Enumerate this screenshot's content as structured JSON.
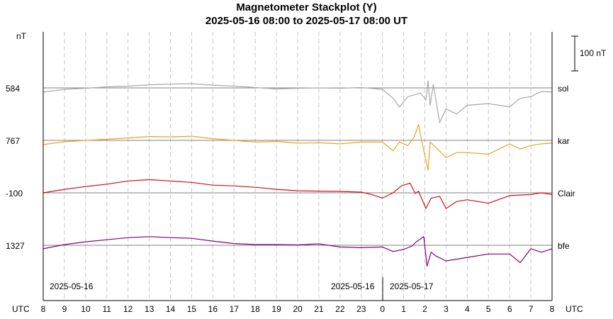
{
  "chart_data": {
    "type": "line",
    "title": "Magnetometer Stackplot (Y)",
    "subtitle": "2025-05-16 08:00 to 2025-05-17 08:00 UT",
    "y_unit": "nT",
    "scale_bar_label": "100 nT",
    "x_axis_label_left": "UTC",
    "x_axis_label_right": "UTC",
    "x_hours": [
      8,
      9,
      10,
      11,
      12,
      13,
      14,
      15,
      16,
      17,
      18,
      19,
      20,
      21,
      22,
      23,
      0,
      1,
      2,
      3,
      4,
      5,
      6,
      7,
      8
    ],
    "x_range_hours": [
      0,
      24
    ],
    "date_labels": [
      "2025-05-16",
      "2025-05-16",
      "2025-05-17"
    ],
    "grid": "dashed vertical hour lines",
    "series": [
      {
        "name": "sol",
        "baseline": "584",
        "color": "#a8a8a8",
        "points": [
          [
            0,
            -12
          ],
          [
            1,
            -4
          ],
          [
            2,
            -1
          ],
          [
            3,
            3
          ],
          [
            4,
            5
          ],
          [
            5,
            9
          ],
          [
            6,
            11
          ],
          [
            7,
            12
          ],
          [
            8,
            8
          ],
          [
            9,
            5
          ],
          [
            10,
            1
          ],
          [
            11,
            -3
          ],
          [
            12,
            -1
          ],
          [
            13,
            0
          ],
          [
            14,
            -1
          ],
          [
            15,
            1
          ],
          [
            16,
            -4
          ],
          [
            16.5,
            -30
          ],
          [
            16.8,
            -55
          ],
          [
            17.2,
            -25
          ],
          [
            17.8,
            -15
          ],
          [
            18.05,
            -35
          ],
          [
            18.15,
            20
          ],
          [
            18.25,
            -50
          ],
          [
            18.4,
            10
          ],
          [
            18.7,
            -100
          ],
          [
            19,
            -60
          ],
          [
            19.5,
            -75
          ],
          [
            20,
            -50
          ],
          [
            21,
            -45
          ],
          [
            22,
            -55
          ],
          [
            22.5,
            -30
          ],
          [
            23,
            -25
          ],
          [
            23.5,
            -10
          ],
          [
            24,
            -12
          ]
        ]
      },
      {
        "name": "kar",
        "baseline": "767",
        "color": "#f0a020",
        "points": [
          [
            0,
            -12
          ],
          [
            1,
            -4
          ],
          [
            2,
            0
          ],
          [
            3,
            3
          ],
          [
            4,
            7
          ],
          [
            5,
            11
          ],
          [
            6,
            10
          ],
          [
            7,
            12
          ],
          [
            8,
            5
          ],
          [
            9,
            0
          ],
          [
            10,
            -5
          ],
          [
            11,
            -3
          ],
          [
            12,
            -8
          ],
          [
            13,
            -7
          ],
          [
            14,
            -10
          ],
          [
            15,
            -5
          ],
          [
            15.5,
            -5
          ],
          [
            16,
            -5
          ],
          [
            16.5,
            -30
          ],
          [
            16.8,
            -5
          ],
          [
            17.2,
            -15
          ],
          [
            17.5,
            10
          ],
          [
            17.7,
            45
          ],
          [
            17.9,
            -15
          ],
          [
            18.15,
            -85
          ],
          [
            18.25,
            -5
          ],
          [
            18.6,
            -25
          ],
          [
            19,
            -50
          ],
          [
            19.5,
            -35
          ],
          [
            20,
            -35
          ],
          [
            21,
            -40
          ],
          [
            22,
            -10
          ],
          [
            22.5,
            -25
          ],
          [
            23,
            -15
          ],
          [
            23.5,
            -10
          ],
          [
            24,
            -8
          ]
        ]
      },
      {
        "name": "Clair",
        "baseline": "-100",
        "color": "#d01010",
        "points": [
          [
            0,
            0
          ],
          [
            1,
            10
          ],
          [
            2,
            18
          ],
          [
            3,
            25
          ],
          [
            4,
            34
          ],
          [
            5,
            38
          ],
          [
            6,
            34
          ],
          [
            7,
            30
          ],
          [
            8,
            22
          ],
          [
            9,
            20
          ],
          [
            10,
            16
          ],
          [
            11,
            10
          ],
          [
            12,
            6
          ],
          [
            13,
            5
          ],
          [
            14,
            4
          ],
          [
            15,
            2
          ],
          [
            15.5,
            -5
          ],
          [
            16,
            -15
          ],
          [
            16.5,
            0
          ],
          [
            16.9,
            20
          ],
          [
            17.3,
            28
          ],
          [
            17.55,
            -2
          ],
          [
            17.7,
            5
          ],
          [
            18.05,
            -45
          ],
          [
            18.3,
            -15
          ],
          [
            18.7,
            -10
          ],
          [
            19,
            -45
          ],
          [
            19.5,
            -25
          ],
          [
            20,
            -20
          ],
          [
            21,
            -30
          ],
          [
            22,
            -8
          ],
          [
            23,
            -5
          ],
          [
            23.5,
            0
          ],
          [
            24,
            -5
          ]
        ]
      },
      {
        "name": "bfe",
        "baseline": "1327",
        "color": "#800080",
        "points": [
          [
            0,
            -10
          ],
          [
            1,
            2
          ],
          [
            2,
            10
          ],
          [
            3,
            16
          ],
          [
            4,
            22
          ],
          [
            5,
            25
          ],
          [
            6,
            22
          ],
          [
            7,
            20
          ],
          [
            8,
            12
          ],
          [
            9,
            5
          ],
          [
            10,
            2
          ],
          [
            11,
            2
          ],
          [
            12,
            1
          ],
          [
            13,
            4
          ],
          [
            14,
            -5
          ],
          [
            15,
            -7
          ],
          [
            16,
            -5
          ],
          [
            16.5,
            -18
          ],
          [
            17,
            -12
          ],
          [
            17.4,
            -2
          ],
          [
            17.6,
            10
          ],
          [
            17.95,
            25
          ],
          [
            18.1,
            -60
          ],
          [
            18.3,
            -20
          ],
          [
            18.5,
            -30
          ],
          [
            19,
            -45
          ],
          [
            19.5,
            -40
          ],
          [
            20,
            -35
          ],
          [
            21,
            -25
          ],
          [
            22,
            -25
          ],
          [
            22.5,
            -50
          ],
          [
            23,
            -10
          ],
          [
            23.5,
            -20
          ],
          [
            24,
            -10
          ]
        ]
      }
    ]
  }
}
